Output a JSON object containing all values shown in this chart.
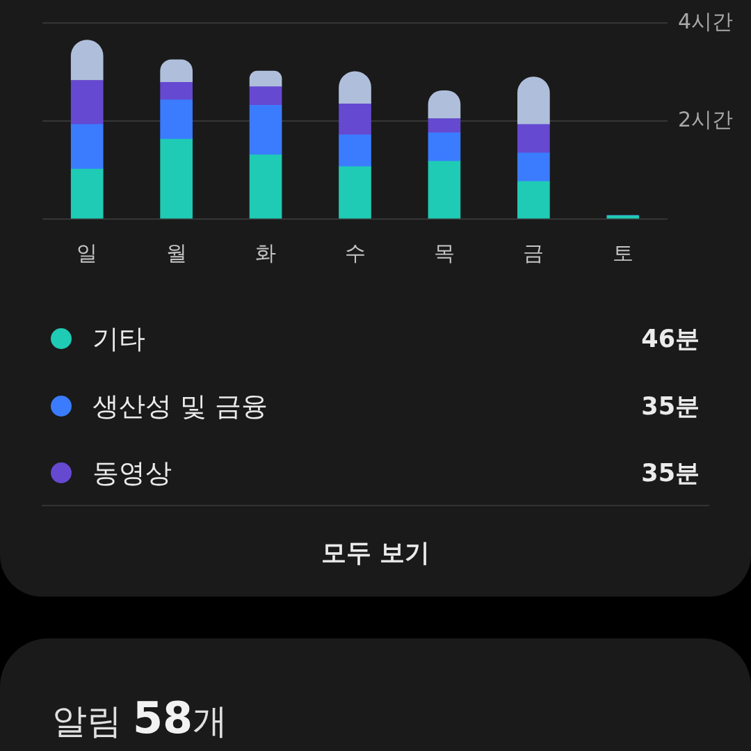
{
  "chart_data": {
    "type": "bar",
    "categories": [
      "일",
      "월",
      "화",
      "수",
      "목",
      "금",
      "토"
    ],
    "stacked": true,
    "series": [
      {
        "name": "기타",
        "color": "#1fcbb4",
        "values": [
          1.02,
          1.63,
          1.31,
          1.07,
          1.18,
          0.77,
          0.07
        ]
      },
      {
        "name": "생산성 및 금융",
        "color": "#3b7cff",
        "values": [
          0.91,
          0.8,
          1.01,
          0.65,
          0.58,
          0.58,
          0
        ]
      },
      {
        "name": "동영상",
        "color": "#6549d1",
        "values": [
          0.9,
          0.36,
          0.38,
          0.63,
          0.29,
          0.58,
          0
        ]
      },
      {
        "color": "#afbfdb",
        "values": [
          0.82,
          0.46,
          0.32,
          0.66,
          0.57,
          0.97,
          0
        ]
      }
    ],
    "ylim": [
      0,
      4
    ],
    "yticks": [
      {
        "value": 0,
        "label": null
      },
      {
        "value": 2,
        "label": "2시간"
      },
      {
        "value": 4,
        "label": "4시간"
      }
    ],
    "grid": "y",
    "legend": "bottom",
    "annotations": [
      "46분",
      "35분",
      "35분",
      "모두 보기",
      "알림 58개"
    ]
  }
}
